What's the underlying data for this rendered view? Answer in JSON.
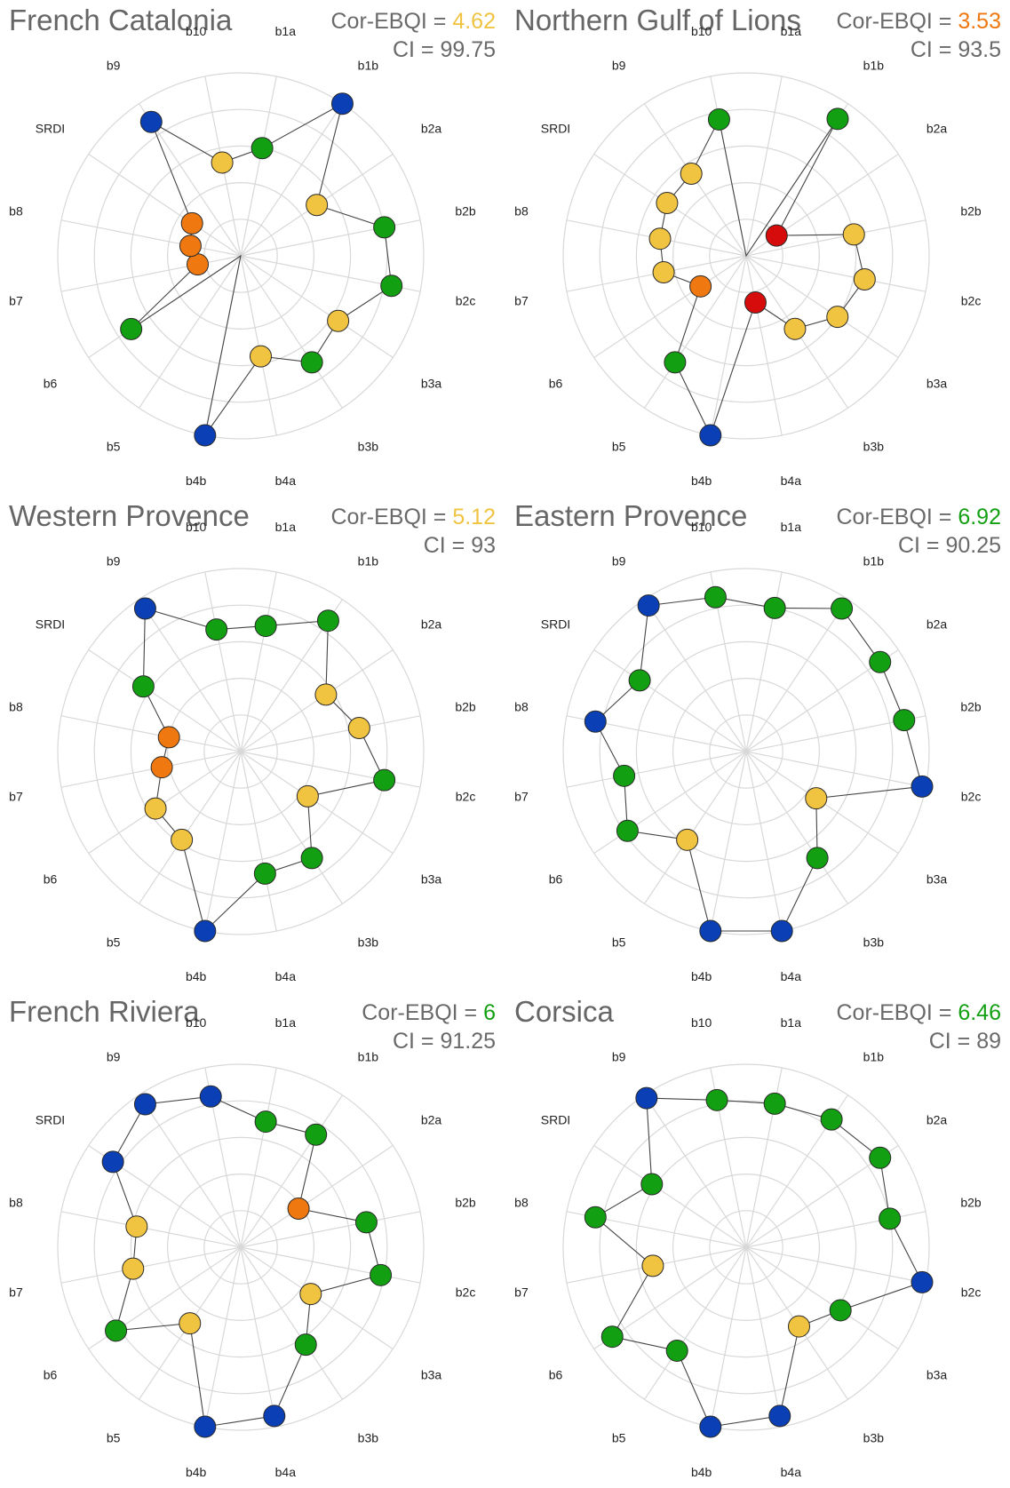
{
  "axis_labels": [
    "b1a",
    "b1b",
    "b2a",
    "b2b",
    "b2c",
    "b3a",
    "b3b",
    "b4a",
    "b4b",
    "b5",
    "b6",
    "b7",
    "b8",
    "SRDI",
    "b9",
    "b10"
  ],
  "ebqi_label": "Cor-EBQI = ",
  "ci_label": "CI = ",
  "status_colors": {
    "blue": "#0b3fb5",
    "green": "#12a012",
    "yellow": "#f0c341",
    "orange": "#f07810",
    "red": "#d60b0b"
  },
  "chart_data": [
    {
      "type": "radar",
      "title": "French Catalonia",
      "cor_ebqi": "4.62",
      "cor_ebqi_color": "#f0c341",
      "ci": "99.75",
      "rlim": [
        0,
        5
      ],
      "categories": [
        "b1a",
        "b1b",
        "b2a",
        "b2b",
        "b2c",
        "b3a",
        "b3b",
        "b4a",
        "b4b",
        "b5",
        "b6",
        "b7",
        "b8",
        "SRDI",
        "b9",
        "b10"
      ],
      "values": [
        3,
        5,
        2.5,
        4,
        4.2,
        3.2,
        3.5,
        2.8,
        5,
        0,
        3.6,
        1.2,
        1.4,
        1.6,
        4.4,
        2.6
      ],
      "colors": [
        "green",
        "blue",
        "yellow",
        "green",
        "green",
        "yellow",
        "green",
        "yellow",
        "blue",
        "none",
        "green",
        "orange",
        "orange",
        "orange",
        "blue",
        "yellow"
      ]
    },
    {
      "type": "radar",
      "title": "Northern Gulf of Lions",
      "cor_ebqi": "3.53",
      "cor_ebqi_color": "#f07810",
      "ci": "93.5",
      "rlim": [
        0,
        5
      ],
      "categories": [
        "b1a",
        "b1b",
        "b2a",
        "b2b",
        "b2c",
        "b3a",
        "b3b",
        "b4a",
        "b4b",
        "b5",
        "b6",
        "b7",
        "b8",
        "SRDI",
        "b9",
        "b10"
      ],
      "values": [
        0,
        4.5,
        1,
        3,
        3.3,
        3,
        2.4,
        1.3,
        5,
        3.5,
        1.5,
        2.3,
        2.4,
        2.6,
        2.7,
        3.8
      ],
      "colors": [
        "none",
        "green",
        "red",
        "yellow",
        "yellow",
        "yellow",
        "yellow",
        "red",
        "blue",
        "green",
        "orange",
        "yellow",
        "yellow",
        "yellow",
        "yellow",
        "green"
      ]
    },
    {
      "type": "radar",
      "title": "Western Provence",
      "cor_ebqi": "5.12",
      "cor_ebqi_color": "#f0c341",
      "ci": "93",
      "rlim": [
        0,
        5
      ],
      "categories": [
        "b1a",
        "b1b",
        "b2a",
        "b2b",
        "b2c",
        "b3a",
        "b3b",
        "b4a",
        "b4b",
        "b5",
        "b6",
        "b7",
        "b8",
        "SRDI",
        "b9",
        "b10"
      ],
      "values": [
        3.5,
        4.3,
        2.8,
        3.3,
        4,
        2.2,
        3.5,
        3.4,
        5,
        2.9,
        2.8,
        2.2,
        2,
        3.2,
        4.7,
        3.4
      ],
      "colors": [
        "green",
        "green",
        "yellow",
        "yellow",
        "green",
        "yellow",
        "green",
        "green",
        "blue",
        "yellow",
        "yellow",
        "orange",
        "orange",
        "green",
        "blue",
        "green"
      ]
    },
    {
      "type": "radar",
      "title": "Eastern Provence",
      "cor_ebqi": "6.92",
      "cor_ebqi_color": "#12a012",
      "ci": "90.25",
      "rlim": [
        0,
        5
      ],
      "categories": [
        "b1a",
        "b1b",
        "b2a",
        "b2b",
        "b2c",
        "b3a",
        "b3b",
        "b4a",
        "b4b",
        "b5",
        "b6",
        "b7",
        "b8",
        "SRDI",
        "b9",
        "b10"
      ],
      "values": [
        4,
        4.7,
        4.4,
        4.4,
        4.9,
        2.3,
        3.5,
        5,
        5,
        2.9,
        3.9,
        3.4,
        4.2,
        3.5,
        4.8,
        4.3
      ],
      "colors": [
        "green",
        "green",
        "green",
        "green",
        "blue",
        "yellow",
        "green",
        "blue",
        "blue",
        "yellow",
        "green",
        "green",
        "blue",
        "green",
        "blue",
        "green"
      ]
    },
    {
      "type": "radar",
      "title": "French Riviera",
      "cor_ebqi": "6",
      "cor_ebqi_color": "#12a012",
      "ci": "91.25",
      "rlim": [
        0,
        5
      ],
      "categories": [
        "b1a",
        "b1b",
        "b2a",
        "b2b",
        "b2c",
        "b3a",
        "b3b",
        "b4a",
        "b4b",
        "b5",
        "b6",
        "b7",
        "b8",
        "SRDI",
        "b9",
        "b10"
      ],
      "values": [
        3.5,
        3.7,
        1.9,
        3.5,
        3.9,
        2.3,
        3.2,
        4.7,
        5,
        2.5,
        4.1,
        3,
        2.9,
        4.2,
        4.7,
        4.2
      ],
      "colors": [
        "green",
        "green",
        "orange",
        "green",
        "green",
        "yellow",
        "green",
        "blue",
        "blue",
        "yellow",
        "green",
        "yellow",
        "yellow",
        "blue",
        "blue",
        "blue"
      ]
    },
    {
      "type": "radar",
      "title": "Corsica",
      "cor_ebqi": "6.46",
      "cor_ebqi_color": "#12a012",
      "ci": "89",
      "rlim": [
        0,
        5
      ],
      "categories": [
        "b1a",
        "b1b",
        "b2a",
        "b2b",
        "b2c",
        "b3a",
        "b3b",
        "b4a",
        "b4b",
        "b5",
        "b6",
        "b7",
        "b8",
        "SRDI",
        "b9",
        "b10"
      ],
      "values": [
        4,
        4.2,
        4.4,
        4,
        4.9,
        3.1,
        2.6,
        4.7,
        5,
        3.4,
        4.4,
        2.6,
        4.2,
        3.1,
        4.9,
        4.1
      ],
      "colors": [
        "green",
        "green",
        "green",
        "green",
        "blue",
        "green",
        "yellow",
        "blue",
        "blue",
        "green",
        "green",
        "yellow",
        "green",
        "green",
        "blue",
        "green"
      ]
    }
  ]
}
